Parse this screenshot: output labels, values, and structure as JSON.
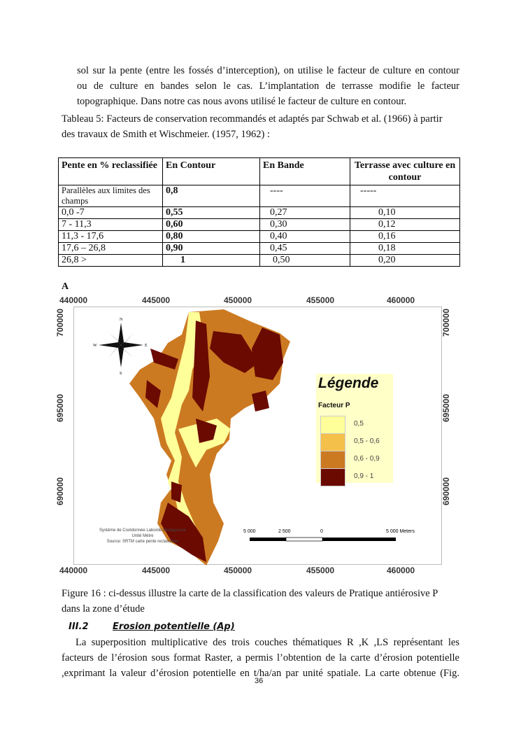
{
  "intro_lines": [
    "sol sur la pente (entre les fossés d’interception), on utilise le facteur de culture en contour",
    "ou de culture en bandes selon le cas. L’implantation de terrasse modifie le facteur",
    "topographique. Dans notre cas nous avons utilisé le facteur de culture en contour."
  ],
  "table_caption": [
    "Tableau 5: Facteurs de conservation recommandés et adaptés par Schwab et al. (1966) à partir",
    "des travaux de Smith et Wischmeier. (1957, 1962) :"
  ],
  "table": {
    "headers": [
      "Pente en % reclassifiée",
      "En Contour",
      "En Bande",
      "Terrasse avec culture en contour"
    ],
    "rows": [
      [
        "Parallèles aux limites des champs",
        "0,8",
        "----",
        "-----"
      ],
      [
        "0,0 -7",
        "0,55",
        "0,27",
        "0,10"
      ],
      [
        "7  - 11,3",
        "0,60",
        "0,30",
        "0,12"
      ],
      [
        "11,3  - 17,6",
        "0,80",
        "0,40",
        "0,16"
      ],
      [
        "17,6 – 26,8",
        "0,90",
        "0,45",
        "0,18"
      ],
      [
        "26,8 >",
        "1",
        "0,50",
        "0,20"
      ]
    ]
  },
  "figure": {
    "label": "A",
    "x_ticks": [
      "440000",
      "445000",
      "450000",
      "455000",
      "460000"
    ],
    "y_ticks": [
      "700000",
      "695000",
      "690000"
    ],
    "compass": [
      "N",
      "S",
      "W",
      "E"
    ],
    "legend": {
      "title": "Légende",
      "subtitle": "Facteur P",
      "items": [
        {
          "label": "0,5",
          "color": "#ffff99"
        },
        {
          "label": "0,5 - 0,6",
          "color": "#f5c04a"
        },
        {
          "label": "0,6 - 0,9",
          "color": "#cc7a22"
        },
        {
          "label": "0,9 - 1",
          "color": "#6b0a00"
        }
      ]
    },
    "credits": [
      "Systéme de Cooldonnée Laborde Madagascar",
      "Unité Mètre",
      "Source: SRTM carte pente reclassifiée"
    ],
    "scale": [
      "5 000",
      "2 500",
      "0",
      "5 000 Meters"
    ]
  },
  "figure_caption": [
    "Figure 16 : ci-dessus illustre la  carte de la classification des valeurs de Pratique antiérosive P",
    "dans la zone d’étude"
  ],
  "section": {
    "number": "III.2",
    "title": "Erosion potentielle (Ap)"
  },
  "paragraph": [
    "La superposition multiplicative des trois couches thématiques R ,K ,LS  représentant les",
    "facteurs de l’érosion sous format Raster, a permis l’obtention de la carte d’érosion potentielle",
    ",exprimant la valeur d’érosion potentielle en t/ha/an par unité spatiale. La carte obtenue (Fig."
  ],
  "page_number": "36"
}
